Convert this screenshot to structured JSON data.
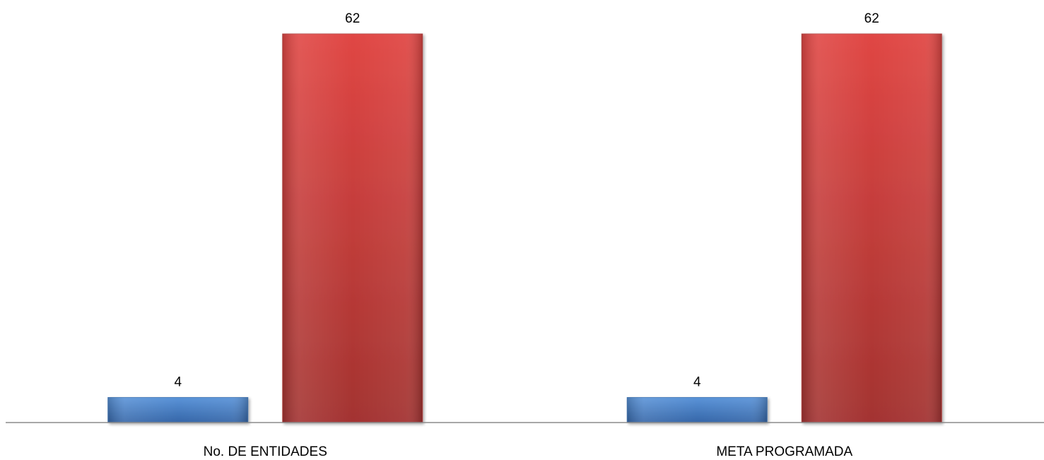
{
  "chart_data": {
    "type": "bar",
    "categories": [
      "No. DE ENTIDADES",
      "META PROGRAMADA"
    ],
    "series": [
      {
        "values": [
          4,
          4
        ],
        "color": "#4A7EBB"
      },
      {
        "values": [
          62,
          62
        ],
        "color": "#BE4B48"
      }
    ],
    "ylim": [
      0,
      62
    ],
    "grid": false,
    "legend": "none",
    "data_labels": true
  }
}
